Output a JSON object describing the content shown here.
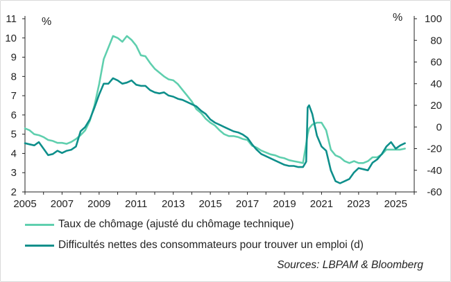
{
  "chart_data": {
    "type": "line",
    "y_left": {
      "unit_label": "%",
      "ylim": [
        2,
        11
      ],
      "ticks": [
        "2",
        "3",
        "4",
        "5",
        "6",
        "7",
        "8",
        "9",
        "10",
        "11"
      ]
    },
    "y_right": {
      "unit_label": "%",
      "ylim": [
        -60,
        100
      ],
      "ticks": [
        "-60",
        "-40",
        "-20",
        "0",
        "20",
        "40",
        "60",
        "80",
        "100"
      ]
    },
    "x_axis": {
      "xlim": [
        2005,
        2026
      ],
      "tick_labels": [
        "2005",
        "2007",
        "2009",
        "2011",
        "2013",
        "2015",
        "2017",
        "2019",
        "2021",
        "2023",
        "2025"
      ]
    },
    "grid": false,
    "legend_position": "bottom",
    "series": [
      {
        "name": "Taux de chômage (ajusté du chômage technique)",
        "axis": "left",
        "color": "#5fcfae",
        "points": [
          [
            2005.0,
            5.3
          ],
          [
            2005.25,
            5.2
          ],
          [
            2005.5,
            5.0
          ],
          [
            2005.75,
            4.95
          ],
          [
            2006.0,
            4.85
          ],
          [
            2006.25,
            4.7
          ],
          [
            2006.5,
            4.65
          ],
          [
            2006.75,
            4.55
          ],
          [
            2007.0,
            4.55
          ],
          [
            2007.25,
            4.5
          ],
          [
            2007.5,
            4.6
          ],
          [
            2007.75,
            4.75
          ],
          [
            2008.0,
            4.95
          ],
          [
            2008.25,
            5.2
          ],
          [
            2008.5,
            5.7
          ],
          [
            2008.75,
            6.5
          ],
          [
            2009.0,
            7.6
          ],
          [
            2009.25,
            8.9
          ],
          [
            2009.5,
            9.5
          ],
          [
            2009.75,
            10.1
          ],
          [
            2010.0,
            10.0
          ],
          [
            2010.25,
            9.8
          ],
          [
            2010.5,
            10.1
          ],
          [
            2010.75,
            9.9
          ],
          [
            2011.0,
            9.6
          ],
          [
            2011.25,
            9.1
          ],
          [
            2011.5,
            9.05
          ],
          [
            2011.75,
            8.7
          ],
          [
            2012.0,
            8.4
          ],
          [
            2012.25,
            8.2
          ],
          [
            2012.5,
            8.0
          ],
          [
            2012.75,
            7.85
          ],
          [
            2013.0,
            7.8
          ],
          [
            2013.25,
            7.6
          ],
          [
            2013.5,
            7.3
          ],
          [
            2013.75,
            7.0
          ],
          [
            2014.0,
            6.7
          ],
          [
            2014.25,
            6.3
          ],
          [
            2014.5,
            6.1
          ],
          [
            2014.75,
            5.8
          ],
          [
            2015.0,
            5.6
          ],
          [
            2015.25,
            5.45
          ],
          [
            2015.5,
            5.2
          ],
          [
            2015.75,
            5.0
          ],
          [
            2016.0,
            4.9
          ],
          [
            2016.25,
            4.9
          ],
          [
            2016.5,
            4.85
          ],
          [
            2016.75,
            4.75
          ],
          [
            2017.0,
            4.7
          ],
          [
            2017.25,
            4.4
          ],
          [
            2017.5,
            4.3
          ],
          [
            2017.75,
            4.15
          ],
          [
            2018.0,
            4.05
          ],
          [
            2018.25,
            3.95
          ],
          [
            2018.5,
            3.9
          ],
          [
            2018.75,
            3.8
          ],
          [
            2019.0,
            3.75
          ],
          [
            2019.25,
            3.65
          ],
          [
            2019.5,
            3.6
          ],
          [
            2019.75,
            3.55
          ],
          [
            2020.0,
            3.5
          ],
          [
            2020.17,
            4.5
          ],
          [
            2020.25,
            5.0
          ],
          [
            2020.33,
            5.3
          ],
          [
            2020.5,
            5.5
          ],
          [
            2020.75,
            5.6
          ],
          [
            2021.0,
            5.6
          ],
          [
            2021.25,
            5.2
          ],
          [
            2021.5,
            4.2
          ],
          [
            2021.75,
            3.9
          ],
          [
            2022.0,
            3.8
          ],
          [
            2022.25,
            3.6
          ],
          [
            2022.5,
            3.5
          ],
          [
            2022.75,
            3.6
          ],
          [
            2023.0,
            3.5
          ],
          [
            2023.25,
            3.5
          ],
          [
            2023.5,
            3.6
          ],
          [
            2023.75,
            3.8
          ],
          [
            2024.0,
            3.8
          ],
          [
            2024.25,
            3.95
          ],
          [
            2024.5,
            4.2
          ],
          [
            2024.75,
            4.2
          ],
          [
            2025.0,
            4.2
          ],
          [
            2025.25,
            4.2
          ],
          [
            2025.5,
            4.25
          ]
        ]
      },
      {
        "name": "Difficultés nettes des consommateurs pour trouver un emploi (d)",
        "axis": "right",
        "color": "#0e8f8b",
        "points": [
          [
            2005.0,
            -15
          ],
          [
            2005.25,
            -16
          ],
          [
            2005.5,
            -17
          ],
          [
            2005.75,
            -14
          ],
          [
            2006.0,
            -20
          ],
          [
            2006.25,
            -26
          ],
          [
            2006.5,
            -25
          ],
          [
            2006.75,
            -22
          ],
          [
            2007.0,
            -24
          ],
          [
            2007.25,
            -22
          ],
          [
            2007.5,
            -21
          ],
          [
            2007.75,
            -18
          ],
          [
            2008.0,
            -4
          ],
          [
            2008.25,
            0
          ],
          [
            2008.5,
            7
          ],
          [
            2008.75,
            18
          ],
          [
            2009.0,
            30
          ],
          [
            2009.25,
            40
          ],
          [
            2009.5,
            40
          ],
          [
            2009.75,
            45
          ],
          [
            2010.0,
            43
          ],
          [
            2010.25,
            40
          ],
          [
            2010.5,
            41
          ],
          [
            2010.75,
            43
          ],
          [
            2011.0,
            39
          ],
          [
            2011.25,
            38
          ],
          [
            2011.5,
            38
          ],
          [
            2011.75,
            34
          ],
          [
            2012.0,
            32
          ],
          [
            2012.25,
            31
          ],
          [
            2012.5,
            32
          ],
          [
            2012.75,
            29
          ],
          [
            2013.0,
            28
          ],
          [
            2013.25,
            26
          ],
          [
            2013.5,
            25
          ],
          [
            2013.75,
            23
          ],
          [
            2014.0,
            21
          ],
          [
            2014.25,
            19
          ],
          [
            2014.5,
            15
          ],
          [
            2014.75,
            12
          ],
          [
            2015.0,
            7
          ],
          [
            2015.25,
            4
          ],
          [
            2015.5,
            2
          ],
          [
            2015.75,
            0
          ],
          [
            2016.0,
            -2
          ],
          [
            2016.25,
            -4
          ],
          [
            2016.5,
            -5
          ],
          [
            2016.75,
            -7
          ],
          [
            2017.0,
            -10
          ],
          [
            2017.25,
            -16
          ],
          [
            2017.5,
            -21
          ],
          [
            2017.75,
            -25
          ],
          [
            2018.0,
            -27
          ],
          [
            2018.25,
            -29
          ],
          [
            2018.5,
            -31
          ],
          [
            2018.75,
            -33
          ],
          [
            2019.0,
            -35
          ],
          [
            2019.25,
            -36
          ],
          [
            2019.5,
            -36
          ],
          [
            2019.75,
            -37
          ],
          [
            2020.0,
            -37
          ],
          [
            2020.17,
            -32
          ],
          [
            2020.25,
            18
          ],
          [
            2020.33,
            20
          ],
          [
            2020.5,
            12
          ],
          [
            2020.75,
            -8
          ],
          [
            2021.0,
            -18
          ],
          [
            2021.25,
            -22
          ],
          [
            2021.5,
            -40
          ],
          [
            2021.75,
            -50
          ],
          [
            2022.0,
            -52
          ],
          [
            2022.25,
            -50
          ],
          [
            2022.5,
            -48
          ],
          [
            2022.75,
            -42
          ],
          [
            2023.0,
            -38
          ],
          [
            2023.25,
            -39
          ],
          [
            2023.5,
            -40
          ],
          [
            2023.75,
            -33
          ],
          [
            2024.0,
            -30
          ],
          [
            2024.25,
            -25
          ],
          [
            2024.5,
            -18
          ],
          [
            2024.75,
            -14
          ],
          [
            2025.0,
            -20
          ],
          [
            2025.25,
            -17
          ],
          [
            2025.5,
            -15
          ]
        ]
      }
    ],
    "source": "Sources: LBPAM & Bloomberg"
  },
  "legend": {
    "item1": "Taux de chômage (ajusté du chômage technique)",
    "item2": "Difficultés nettes des consommateurs pour trouver un emploi (d)"
  },
  "source_text": "Sources: LBPAM & Bloomberg"
}
